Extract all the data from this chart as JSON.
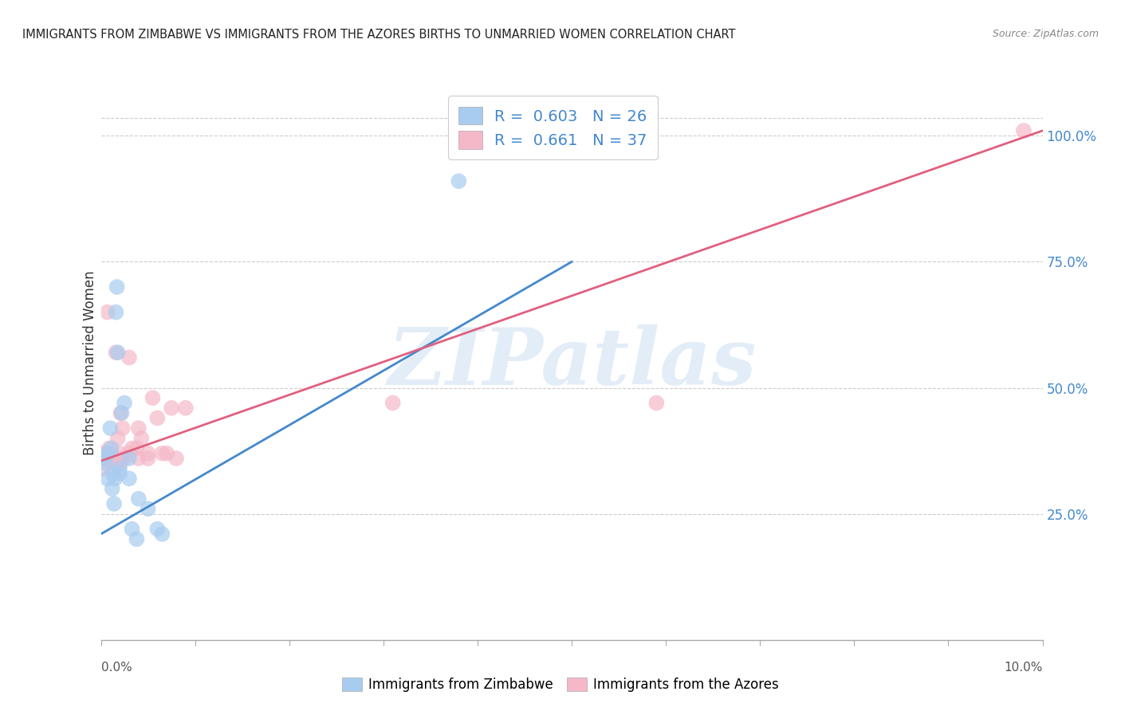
{
  "title": "IMMIGRANTS FROM ZIMBABWE VS IMMIGRANTS FROM THE AZORES BIRTHS TO UNMARRIED WOMEN CORRELATION CHART",
  "source": "Source: ZipAtlas.com",
  "ylabel": "Births to Unmarried Women",
  "ytick_labels": [
    "25.0%",
    "50.0%",
    "75.0%",
    "100.0%"
  ],
  "ytick_values": [
    0.25,
    0.5,
    0.75,
    1.0
  ],
  "legend_blue_r": "0.603",
  "legend_blue_n": "26",
  "legend_pink_r": "0.661",
  "legend_pink_n": "37",
  "legend_blue_label": "Immigrants from Zimbabwe",
  "legend_pink_label": "Immigrants from the Azores",
  "watermark": "ZIPatlas",
  "blue_color": "#A8CCF0",
  "pink_color": "#F5B8C8",
  "blue_line_color": "#4488CC",
  "pink_line_color": "#E06080",
  "xlim": [
    0.0,
    0.1
  ],
  "ylim": [
    0.0,
    1.1
  ],
  "blue_points_x": [
    0.0002,
    0.0005,
    0.0007,
    0.0008,
    0.001,
    0.0011,
    0.0012,
    0.0013,
    0.0014,
    0.0015,
    0.0016,
    0.0017,
    0.0018,
    0.002,
    0.002,
    0.0022,
    0.0025,
    0.003,
    0.003,
    0.0033,
    0.0038,
    0.004,
    0.005,
    0.006,
    0.0065,
    0.038
  ],
  "blue_points_y": [
    0.36,
    0.35,
    0.32,
    0.37,
    0.42,
    0.38,
    0.3,
    0.33,
    0.27,
    0.32,
    0.65,
    0.7,
    0.57,
    0.34,
    0.33,
    0.45,
    0.47,
    0.32,
    0.36,
    0.22,
    0.2,
    0.28,
    0.26,
    0.22,
    0.21,
    0.91
  ],
  "pink_points_x": [
    0.0001,
    0.0002,
    0.0003,
    0.0005,
    0.0007,
    0.0009,
    0.001,
    0.0011,
    0.0013,
    0.0015,
    0.0016,
    0.0018,
    0.002,
    0.002,
    0.0021,
    0.0022,
    0.0023,
    0.0025,
    0.003,
    0.003,
    0.0033,
    0.0038,
    0.004,
    0.004,
    0.0043,
    0.005,
    0.005,
    0.0055,
    0.006,
    0.0065,
    0.007,
    0.0075,
    0.008,
    0.009,
    0.031,
    0.059,
    0.098
  ],
  "pink_points_y": [
    0.37,
    0.37,
    0.34,
    0.36,
    0.65,
    0.38,
    0.36,
    0.37,
    0.35,
    0.36,
    0.57,
    0.4,
    0.35,
    0.37,
    0.45,
    0.36,
    0.42,
    0.36,
    0.37,
    0.56,
    0.38,
    0.38,
    0.36,
    0.42,
    0.4,
    0.36,
    0.37,
    0.48,
    0.44,
    0.37,
    0.37,
    0.46,
    0.36,
    0.46,
    0.47,
    0.47,
    1.01
  ],
  "blue_line_x": [
    0.0,
    0.05
  ],
  "blue_line_y": [
    0.21,
    0.75
  ],
  "pink_line_x": [
    0.0,
    0.1
  ],
  "pink_line_y": [
    0.355,
    1.01
  ],
  "xtick_positions": [
    0.0,
    0.01,
    0.02,
    0.03,
    0.04,
    0.05,
    0.06,
    0.07,
    0.08,
    0.09,
    0.1
  ]
}
